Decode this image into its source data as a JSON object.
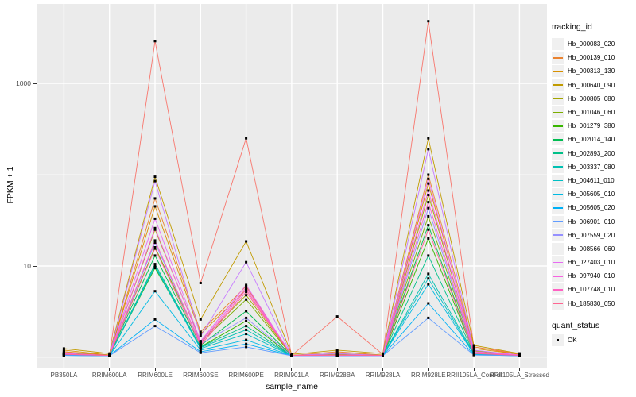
{
  "axes": {
    "y": {
      "title": "FPKM + 1",
      "scale": "log10",
      "ticks": [
        {
          "label": "1000",
          "value": 1000
        },
        {
          "label": "10",
          "value": 10
        }
      ],
      "minor_gridline_values": [
        1,
        100
      ],
      "major_gridline_values": [
        10,
        1000
      ]
    },
    "x": {
      "title": "sample_name",
      "categories": [
        "PB350LA",
        "RRIM600LA",
        "RRIM600LE",
        "RRIM600SE",
        "RRIM600PE",
        "RRIM901LA",
        "RRIM928BA",
        "RRIM928LA",
        "RRIM928LE",
        "RRII105LA_Control",
        "RRII105LA_Stressed"
      ]
    }
  },
  "legend": {
    "tracking_title": "tracking_id",
    "quant_title": "quant_status",
    "quant_items": [
      {
        "label": "OK"
      }
    ]
  },
  "colors": {
    "panel_bg": "#EBEBEB",
    "grid": "#FFFFFF",
    "tick": "#333333",
    "axis_text": "#4d4d4d",
    "point": "#000000",
    "key_bg": "#F0F0F0"
  },
  "chart_data": {
    "type": "line",
    "title": "",
    "xlabel": "sample_name",
    "ylabel": "FPKM + 1",
    "yscale": "log10",
    "ylim": [
      0.79,
      7000
    ],
    "grid": true,
    "legend_position": "right",
    "categories": [
      "PB350LA",
      "RRIM600LA",
      "RRIM600LE",
      "RRIM600SE",
      "RRIM600PE",
      "RRIM901LA",
      "RRIM928BA",
      "RRIM928LA",
      "RRIM928LE",
      "RRII105LA_Control",
      "RRII105LA_Stressed"
    ],
    "series": [
      {
        "name": "Hb_000083_020",
        "color": "#F8766D",
        "values": [
          1.15,
          1.05,
          2900,
          6.5,
          250,
          1.05,
          2.8,
          1.08,
          4800,
          1.3,
          1.1
        ]
      },
      {
        "name": "Hb_000139_010",
        "color": "#EA8331",
        "values": [
          1.15,
          1.06,
          55,
          1.9,
          6.0,
          1.05,
          1.15,
          1.06,
          100,
          1.3,
          1.08
        ]
      },
      {
        "name": "Hb_000313_130",
        "color": "#D89000",
        "values": [
          1.2,
          1.06,
          45,
          1.8,
          5.5,
          1.05,
          1.1,
          1.06,
          80,
          1.25,
          1.08
        ]
      },
      {
        "name": "Hb_000640_090",
        "color": "#C19B00",
        "values": [
          1.25,
          1.1,
          95,
          2.6,
          18.6,
          1.08,
          1.2,
          1.1,
          250,
          1.35,
          1.1
        ]
      },
      {
        "name": "Hb_000805_080",
        "color": "#A3A500",
        "values": [
          1.12,
          1.05,
          25,
          1.5,
          4.8,
          1.05,
          1.08,
          1.05,
          60,
          1.18,
          1.06
        ]
      },
      {
        "name": "Hb_001046_060",
        "color": "#7CAE00",
        "values": [
          1.1,
          1.05,
          16,
          1.45,
          4.3,
          1.05,
          1.06,
          1.05,
          35,
          1.15,
          1.06
        ]
      },
      {
        "name": "Hb_001279_380",
        "color": "#39B600",
        "values": [
          1.08,
          1.05,
          9.5,
          1.3,
          2.5,
          1.04,
          1.05,
          1.04,
          20,
          1.12,
          1.05
        ]
      },
      {
        "name": "Hb_002014_140",
        "color": "#00BC51",
        "values": [
          1.08,
          1.05,
          13,
          1.35,
          3.2,
          1.04,
          1.05,
          1.04,
          28,
          1.1,
          1.05
        ]
      },
      {
        "name": "Hb_002893_200",
        "color": "#00C088",
        "values": [
          1.06,
          1.04,
          10.5,
          1.3,
          2.2,
          1.04,
          1.05,
          1.04,
          13,
          1.1,
          1.05
        ]
      },
      {
        "name": "Hb_003337_080",
        "color": "#00C0B2",
        "values": [
          1.06,
          1.04,
          10,
          1.28,
          2.0,
          1.04,
          1.05,
          1.04,
          8.2,
          1.1,
          1.05
        ]
      },
      {
        "name": "Hb_004611_010",
        "color": "#00BFC4",
        "values": [
          1.06,
          1.04,
          9.8,
          1.25,
          1.8,
          1.04,
          1.04,
          1.04,
          7.3,
          1.08,
          1.04
        ]
      },
      {
        "name": "Hb_005605_010",
        "color": "#00BAE2",
        "values": [
          1.05,
          1.04,
          5.3,
          1.2,
          1.55,
          1.04,
          1.04,
          1.04,
          6.3,
          1.08,
          1.04
        ]
      },
      {
        "name": "Hb_005605_020",
        "color": "#00B0F6",
        "values": [
          1.05,
          1.04,
          2.6,
          1.15,
          1.4,
          1.04,
          1.04,
          1.04,
          3.9,
          1.06,
          1.04
        ]
      },
      {
        "name": "Hb_006901_010",
        "color": "#619CFF",
        "values": [
          1.05,
          1.04,
          2.2,
          1.12,
          1.3,
          1.04,
          1.04,
          1.04,
          2.7,
          1.06,
          1.04
        ]
      },
      {
        "name": "Hb_007559_020",
        "color": "#9590FF",
        "values": [
          1.1,
          1.05,
          18,
          1.4,
          2.7,
          1.04,
          1.05,
          1.04,
          43,
          1.12,
          1.05
        ]
      },
      {
        "name": "Hb_008566_060",
        "color": "#C77CFF",
        "values": [
          1.1,
          1.05,
          85,
          1.7,
          11,
          1.05,
          1.1,
          1.05,
          190,
          1.2,
          1.06
        ]
      },
      {
        "name": "Hb_027403_010",
        "color": "#E76BF3",
        "values": [
          1.1,
          1.05,
          33,
          1.5,
          6.2,
          1.05,
          1.06,
          1.05,
          90,
          1.15,
          1.06
        ]
      },
      {
        "name": "Hb_097940_010",
        "color": "#F763E1",
        "values": [
          1.1,
          1.05,
          26,
          1.45,
          5.8,
          1.05,
          1.06,
          1.05,
          67,
          1.15,
          1.06
        ]
      },
      {
        "name": "Hb_107748_010",
        "color": "#FF61C3",
        "values": [
          1.08,
          1.05,
          19,
          1.4,
          5.5,
          1.05,
          1.05,
          1.05,
          50,
          1.12,
          1.05
        ]
      },
      {
        "name": "Hb_185830_050",
        "color": "#FF6692",
        "values": [
          1.08,
          1.05,
          15.5,
          1.35,
          5.2,
          1.05,
          1.05,
          1.05,
          25,
          1.1,
          1.05
        ]
      }
    ],
    "quant_status": {
      "label": "OK",
      "marker": "black-square"
    }
  }
}
